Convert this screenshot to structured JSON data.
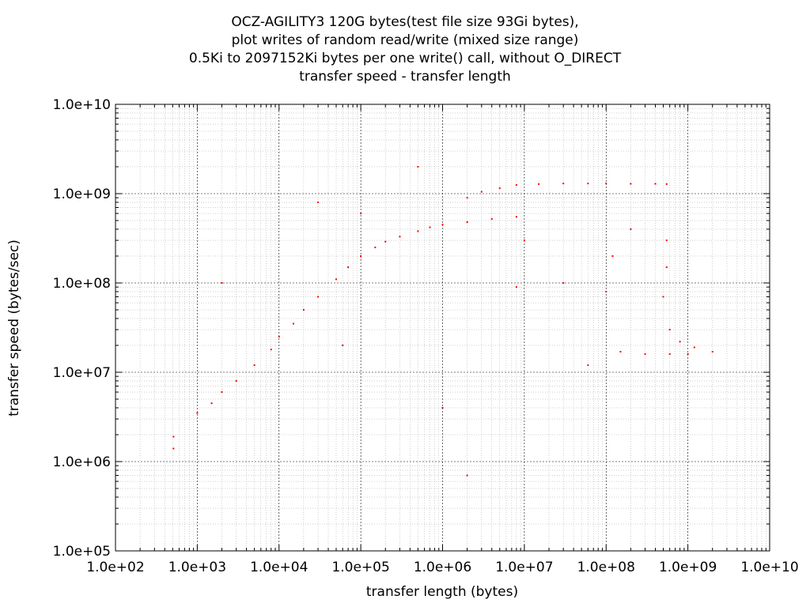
{
  "chart_data": {
    "type": "scatter",
    "title_lines": [
      "OCZ-AGILITY3 120G bytes(test file size 93Gi bytes),",
      "plot writes of random read/write (mixed size range)",
      "0.5Ki to 2097152Ki bytes per one write() call, without O_DIRECT",
      "transfer speed - transfer length"
    ],
    "xlabel": "transfer length (bytes)",
    "ylabel": "transfer speed (bytes/sec)",
    "xscale": "log",
    "yscale": "log",
    "xlim": [
      100,
      10000000000
    ],
    "ylim": [
      100000,
      10000000000
    ],
    "xticks": [
      "1.0e+02",
      "1.0e+03",
      "1.0e+04",
      "1.0e+05",
      "1.0e+06",
      "1.0e+07",
      "1.0e+08",
      "1.0e+09",
      "1.0e+10"
    ],
    "yticks": [
      "1.0e+05",
      "1.0e+06",
      "1.0e+07",
      "1.0e+08",
      "1.0e+09",
      "1.0e+10"
    ],
    "grid": true,
    "marker_color": "#ff0000",
    "series": [
      {
        "points": [
          [
            512,
            1400000
          ],
          [
            512,
            1900000
          ],
          [
            1000,
            3500000
          ],
          [
            1500,
            4500000
          ],
          [
            2000,
            6000000
          ],
          [
            2000,
            100000000
          ],
          [
            3000,
            8000000
          ],
          [
            5000,
            12000000
          ],
          [
            8000,
            18000000
          ],
          [
            10000,
            25000000
          ],
          [
            15000,
            35000000
          ],
          [
            20000,
            50000000
          ],
          [
            30000,
            70000000
          ],
          [
            50000,
            110000000
          ],
          [
            70000,
            150000000
          ],
          [
            100000,
            200000000
          ],
          [
            150000,
            250000000
          ],
          [
            200000,
            290000000
          ],
          [
            300000,
            330000000
          ],
          [
            500000,
            380000000
          ],
          [
            700000,
            420000000
          ],
          [
            1000000,
            450000000
          ],
          [
            2000000,
            480000000
          ],
          [
            4000000,
            520000000
          ],
          [
            8000000,
            550000000
          ],
          [
            2000000,
            900000000
          ],
          [
            3000000,
            1050000000
          ],
          [
            5000000,
            1150000000
          ],
          [
            8000000,
            1250000000
          ],
          [
            15000000,
            1280000000
          ],
          [
            30000000,
            1300000000
          ],
          [
            60000000,
            1300000000
          ],
          [
            100000000,
            1300000000
          ],
          [
            200000000,
            1290000000
          ],
          [
            400000000,
            1290000000
          ],
          [
            550000000,
            1280000000
          ],
          [
            550000000,
            300000000
          ],
          [
            550000000,
            150000000
          ],
          [
            500000000,
            70000000
          ],
          [
            600000000,
            30000000
          ],
          [
            800000000,
            22000000
          ],
          [
            1200000000,
            19000000
          ],
          [
            2000000000,
            17000000
          ],
          [
            1000000000,
            16000000
          ],
          [
            600000000,
            16000000
          ],
          [
            300000000,
            16000000
          ],
          [
            150000000,
            17000000
          ],
          [
            100000000,
            80000000
          ],
          [
            120000000,
            200000000
          ],
          [
            200000000,
            400000000
          ],
          [
            30000000,
            100000000
          ],
          [
            10000000,
            300000000
          ],
          [
            60000,
            20000000
          ],
          [
            1000000,
            4000000
          ],
          [
            2000000,
            700000
          ],
          [
            30000,
            800000000
          ],
          [
            100000,
            600000000
          ],
          [
            500000,
            2000000000
          ],
          [
            8000000,
            90000000
          ],
          [
            60000000,
            12000000
          ]
        ]
      }
    ]
  }
}
